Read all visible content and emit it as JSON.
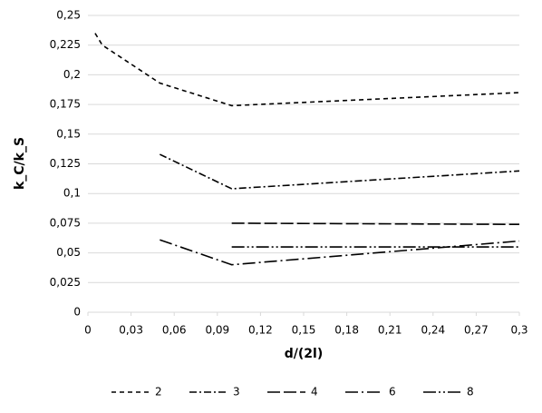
{
  "chart_data": {
    "type": "line",
    "xlabel": "d/(2l)",
    "ylabel": "k_C/k_S",
    "xlim": [
      0,
      0.3
    ],
    "ylim": [
      0,
      0.25
    ],
    "xticks": [
      0,
      {
        "value": 0.03,
        "label": "0,03"
      },
      {
        "value": 0.06,
        "label": "0,06"
      },
      {
        "value": 0.09,
        "label": "0,09"
      },
      {
        "value": 0.12,
        "label": "0,12"
      },
      {
        "value": 0.15,
        "label": "0,15"
      },
      {
        "value": 0.18,
        "label": "0,18"
      },
      {
        "value": 0.21,
        "label": "0,21"
      },
      {
        "value": 0.24,
        "label": "0,24"
      },
      {
        "value": 0.27,
        "label": "0,27"
      },
      {
        "value": 0.3,
        "label": "0,3"
      }
    ],
    "yticks": [
      0,
      {
        "value": 0.025,
        "label": "0,025"
      },
      {
        "value": 0.05,
        "label": "0,05"
      },
      {
        "value": 0.075,
        "label": "0,075"
      },
      {
        "value": 0.1,
        "label": "0,1"
      },
      {
        "value": 0.125,
        "label": "0,125"
      },
      {
        "value": 0.15,
        "label": "0,15"
      },
      {
        "value": 0.175,
        "label": "0,175"
      },
      {
        "value": 0.2,
        "label": "0,2"
      },
      {
        "value": 0.225,
        "label": "0,225"
      },
      {
        "value": 0.25,
        "label": "0,25"
      }
    ],
    "grid": true,
    "legend": "bottom",
    "series": [
      {
        "name": "2",
        "color": "#000000",
        "dash": "5,4",
        "x": [
          0.005,
          0.01,
          0.05,
          0.1,
          0.3
        ],
        "values": [
          0.235,
          0.225,
          0.193,
          0.174,
          0.185
        ]
      },
      {
        "name": "3",
        "color": "#000000",
        "dash": "8,3,2,3",
        "x": [
          0.05,
          0.1,
          0.3
        ],
        "values": [
          0.133,
          0.104,
          0.119
        ]
      },
      {
        "name": "4",
        "color": "#000000",
        "dash": "14,4",
        "x": [
          0.1,
          0.3
        ],
        "values": [
          0.075,
          0.074
        ]
      },
      {
        "name": "6",
        "color": "#000000",
        "dash": "14,4,2,4",
        "x": [
          0.05,
          0.1,
          0.3
        ],
        "values": [
          0.061,
          0.04,
          0.06
        ]
      },
      {
        "name": "8",
        "color": "#000000",
        "dash": "14,3,2,3,2,3",
        "x": [
          0.1,
          0.3
        ],
        "values": [
          0.055,
          0.055
        ]
      }
    ]
  }
}
